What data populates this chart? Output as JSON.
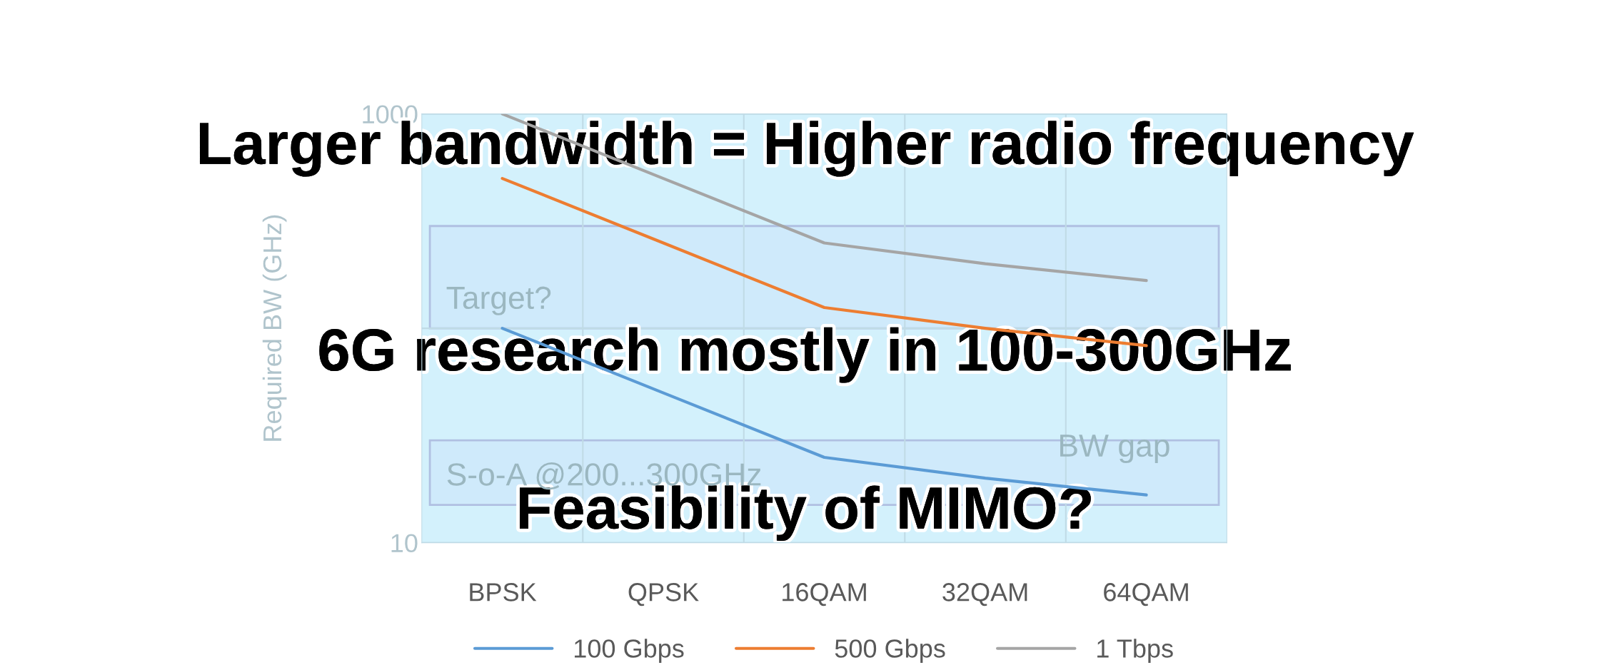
{
  "chart_data": {
    "type": "line",
    "ylabel": "Required BW (GHz)",
    "categories": [
      "BPSK",
      "QPSK",
      "16QAM",
      "32QAM",
      "64QAM"
    ],
    "series": [
      {
        "name": "100 Gbps",
        "color": "#5b9bd5",
        "values": [
          100,
          50,
          25,
          20,
          16.7
        ]
      },
      {
        "name": "500 Gbps",
        "color": "#ed7d31",
        "values": [
          500,
          250,
          125,
          100,
          83
        ]
      },
      {
        "name": "1 Tbps",
        "color": "#a5a5a5",
        "values": [
          1000,
          500,
          250,
          200,
          167
        ]
      }
    ],
    "log": "y",
    "ylim": [
      10,
      1000
    ],
    "yticks": [
      10,
      {
        "value": 100,
        "label": null
      },
      1000
    ],
    "grid": true,
    "legend": "bottom",
    "marker": "none",
    "line_style": "solid",
    "bands": [
      {
        "axis": "y",
        "from": 100,
        "to": 300,
        "label": "Target?",
        "color": "#cfe9fb"
      },
      {
        "axis": "y",
        "from": 15,
        "to": 30,
        "label": "S-o-A @200...300GHz",
        "color": "#cfe9fb"
      }
    ],
    "annotations": [
      "BW gap",
      "Larger bandwidth = Higher radio frequency",
      "6G research mostly in 100-300GHz",
      "Feasibility of MIMO?"
    ]
  }
}
